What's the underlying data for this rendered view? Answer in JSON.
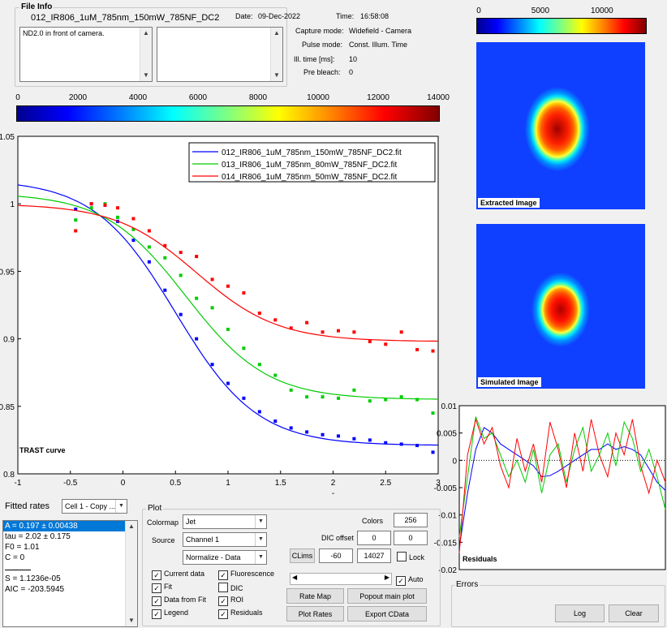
{
  "file_info": {
    "title": "File Info",
    "filename": "012_IR806_1uM_785nm_150mW_785NF_DC2",
    "date_label": "Date:",
    "date": "09-Dec-2022",
    "time_label": "Time:",
    "time": "16:58:08",
    "comment": "ND2.0 in front of camera.",
    "capture_mode_label": "Capture mode:",
    "capture_mode": "Widefield - Camera",
    "pulse_mode_label": "Pulse mode:",
    "pulse_mode": "Const. Illum. Time",
    "ill_time_label": "Ill. time [ms]:",
    "ill_time": "10",
    "pre_bleach_label": "Pre bleach:",
    "pre_bleach": "0"
  },
  "main_colorbar": {
    "ticks": [
      "0",
      "2000",
      "4000",
      "6000",
      "8000",
      "10000",
      "12000",
      "14000"
    ],
    "colormap": "jet"
  },
  "image_colorbar": {
    "ticks": [
      "0",
      "5000",
      "10000"
    ],
    "colormap": "jet"
  },
  "extracted_image_label": "Extracted Image",
  "simulated_image_label": "Simulated Image",
  "chart_data": [
    {
      "type": "scatter",
      "title": "TRAST curve",
      "xlabel": "-",
      "ylabel": "",
      "xlim": [
        -1,
        3
      ],
      "ylim": [
        0.8,
        1.05
      ],
      "x_ticks": [
        "-1",
        "-0.5",
        "0",
        "0.5",
        "1",
        "1.5",
        "2",
        "2.5",
        "3"
      ],
      "y_ticks": [
        "0.8",
        "0.85",
        "0.9",
        "0.95",
        "1",
        "1.05"
      ],
      "y_tick_values": [
        0.8,
        0.85,
        0.9,
        0.95,
        1.0,
        1.05
      ],
      "legend_position": "top-right",
      "series": [
        {
          "name": "012_IR806_1uM_785nm_150mW_785NF_DC2.fit",
          "color": "#0000ff",
          "fit": {
            "A": 0.197,
            "tau": 2.02,
            "F0": 1.01,
            "C": 0
          },
          "x": [
            -0.45,
            -0.3,
            -0.17,
            -0.05,
            0.1,
            0.25,
            0.4,
            0.55,
            0.7,
            0.85,
            1.0,
            1.15,
            1.3,
            1.45,
            1.6,
            1.75,
            1.9,
            2.05,
            2.2,
            2.35,
            2.5,
            2.65,
            2.8,
            2.95
          ],
          "y": [
            0.996,
            1.0,
            0.999,
            0.987,
            0.973,
            0.957,
            0.936,
            0.918,
            0.9,
            0.881,
            0.867,
            0.856,
            0.846,
            0.839,
            0.834,
            0.831,
            0.829,
            0.828,
            0.826,
            0.825,
            0.823,
            0.822,
            0.821,
            0.816
          ]
        },
        {
          "name": "013_IR806_1uM_785nm_80mW_785NF_DC2.fit",
          "color": "#00cc00",
          "x": [
            -0.45,
            -0.3,
            -0.17,
            -0.05,
            0.1,
            0.25,
            0.4,
            0.55,
            0.7,
            0.85,
            1.0,
            1.15,
            1.3,
            1.45,
            1.6,
            1.75,
            1.9,
            2.05,
            2.2,
            2.35,
            2.5,
            2.65,
            2.8,
            2.95
          ],
          "y": [
            0.988,
            0.997,
            1.0,
            0.99,
            0.981,
            0.968,
            0.96,
            0.947,
            0.93,
            0.923,
            0.907,
            0.893,
            0.881,
            0.873,
            0.862,
            0.857,
            0.857,
            0.856,
            0.862,
            0.854,
            0.855,
            0.857,
            0.855,
            0.845
          ]
        },
        {
          "name": "014_IR806_1uM_785nm_50mW_785NF_DC2.fit",
          "color": "#ff0000",
          "x": [
            -0.45,
            -0.3,
            -0.17,
            -0.05,
            0.1,
            0.25,
            0.4,
            0.55,
            0.7,
            0.85,
            1.0,
            1.15,
            1.3,
            1.45,
            1.6,
            1.75,
            1.9,
            2.05,
            2.2,
            2.35,
            2.5,
            2.65,
            2.8,
            2.95
          ],
          "y": [
            0.98,
            1.0,
            0.999,
            0.997,
            0.989,
            0.98,
            0.969,
            0.964,
            0.961,
            0.944,
            0.939,
            0.934,
            0.919,
            0.914,
            0.908,
            0.912,
            0.905,
            0.906,
            0.905,
            0.898,
            0.896,
            0.905,
            0.892,
            0.891
          ]
        }
      ]
    },
    {
      "type": "line",
      "title": "Residuals",
      "xlim": [
        -1,
        3
      ],
      "ylim": [
        -0.02,
        0.01
      ],
      "y_ticks": [
        "0.01",
        "0.005",
        "0",
        "-0.005",
        "-0.01",
        "-0.015",
        "-0.02"
      ],
      "y_tick_values": [
        0.01,
        0.005,
        0,
        -0.005,
        -0.01,
        -0.015,
        -0.02
      ],
      "zero_line": "dotted",
      "series": [
        {
          "color": "#0000ff",
          "values": [
            -0.016,
            -0.006,
            0.002,
            0.006,
            0.005,
            0.003,
            0.002,
            0.001,
            0.0,
            -0.001,
            -0.003,
            -0.0028,
            -0.002,
            -0.001,
            0.0,
            0.001,
            0.002,
            0.002,
            0.003,
            0.002,
            0.0025,
            0.002,
            0.001,
            -0.0015,
            -0.004,
            -0.0055
          ]
        },
        {
          "color": "#00cc00",
          "values": [
            -0.014,
            -0.003,
            0.008,
            0.004,
            0.005,
            0.001,
            -0.003,
            0.0,
            -0.004,
            0.002,
            -0.006,
            0.001,
            0.003,
            -0.004,
            0.002,
            0.006,
            -0.002,
            0.001,
            0.005,
            -0.001,
            0.007,
            0.004,
            -0.002,
            0.002,
            -0.003,
            -0.009
          ]
        },
        {
          "color": "#ff0000",
          "values": [
            -0.017,
            0.001,
            0.0075,
            0.003,
            0.006,
            -0.001,
            -0.005,
            0.004,
            -0.002,
            0.003,
            -0.004,
            0.007,
            0.002,
            -0.005,
            0.005,
            -0.002,
            0.0075,
            0.001,
            -0.003,
            0.005,
            0.001,
            0.0075,
            -0.001,
            -0.006,
            0.0,
            -0.004
          ]
        }
      ]
    }
  ],
  "fitted_rates": {
    "label": "Fitted rates",
    "cell_selector": "Cell 1 - Copy ...",
    "items": [
      "A = 0.197 ± 0.00438",
      "tau = 2.02 ± 0.175",
      "F0 = 1.01",
      "C = 0",
      "",
      "S = 1.1236e-05",
      "AIC = -203.5945"
    ],
    "selected_index": 0
  },
  "plot": {
    "title": "Plot",
    "colormap_label": "Colormap",
    "colormap_value": "Jet",
    "source_label": "Source",
    "source_value": "Channel 1",
    "normalize_value": "Normalize - Data",
    "colors_label": "Colors",
    "colors_value": "256",
    "dic_offset_label": "DIC offset",
    "dic_offset_x": "0",
    "dic_offset_y": "0",
    "clims_label": "CLims",
    "clim_min": "-60",
    "clim_max": "14027",
    "lock_label": "Lock",
    "auto_label": "Auto",
    "checkboxes_left": [
      {
        "label": "Current data",
        "checked": true
      },
      {
        "label": "Fit",
        "checked": true
      },
      {
        "label": "Data from Fit",
        "checked": true
      },
      {
        "label": "Legend",
        "checked": true
      }
    ],
    "checkboxes_right": [
      {
        "label": "Fluorescence",
        "checked": true
      },
      {
        "label": "DIC",
        "checked": false
      },
      {
        "label": "ROI",
        "checked": true
      },
      {
        "label": "Residuals",
        "checked": true
      }
    ],
    "rate_map_label": "Rate Map",
    "popout_label": "Popout main plot",
    "plot_rates_label": "Plot Rates",
    "export_label": "Export CData"
  },
  "errors": {
    "title": "Errors",
    "log_label": "Log",
    "clear_label": "Clear"
  }
}
